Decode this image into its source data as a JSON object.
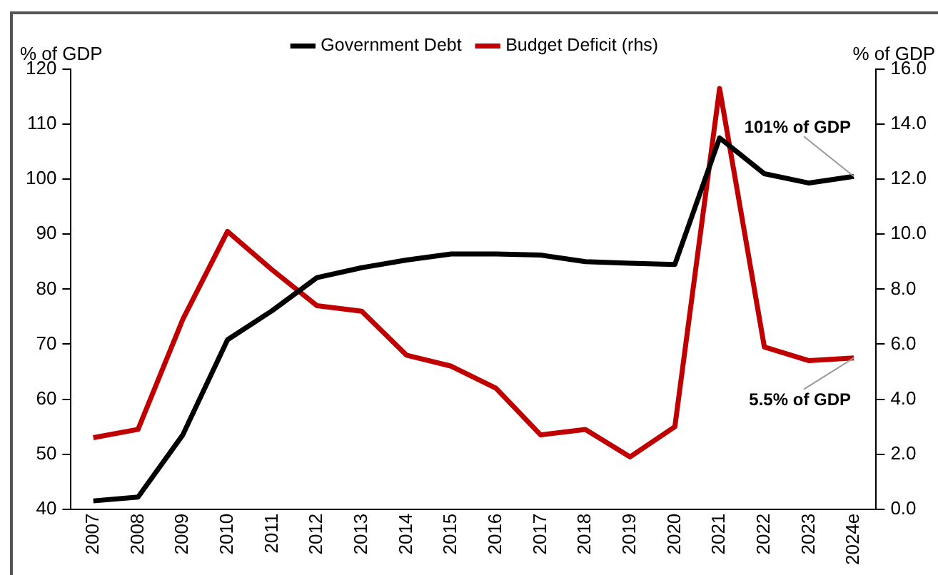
{
  "chart_data": {
    "type": "line",
    "xlabel": null,
    "ylabel": "% of GDP",
    "y2label": "% of GDP",
    "categories": [
      "2007",
      "2008",
      "2009",
      "2010",
      "2011",
      "2012",
      "2013",
      "2014",
      "2015",
      "2016",
      "2017",
      "2018",
      "2019",
      "2020",
      "2021",
      "2022",
      "2023",
      "2024e"
    ],
    "series": [
      {
        "name": "Government Debt",
        "color": "#000000",
        "values": [
          41.5,
          42.2,
          53.5,
          70.8,
          76.1,
          82.1,
          83.9,
          85.3,
          86.4,
          86.4,
          86.2,
          85.0,
          84.7,
          84.5,
          107.5,
          101.0,
          99.3,
          100.5
        ]
      },
      {
        "name": "Budget Deficit (rhs)",
        "color": "#c00000",
        "axis": "y2",
        "values": [
          2.6,
          2.9,
          6.9,
          10.1,
          8.7,
          7.4,
          7.2,
          5.6,
          5.2,
          4.4,
          2.7,
          2.9,
          1.9,
          3.0,
          15.3,
          5.9,
          5.4,
          5.5
        ]
      }
    ],
    "ylim": [
      40,
      120
    ],
    "yticks": [
      40,
      50,
      60,
      70,
      80,
      90,
      100,
      110,
      120
    ],
    "y2lim": [
      0,
      16
    ],
    "y2ticks": [
      {
        "value": 0,
        "label": "0.0"
      },
      {
        "value": 2,
        "label": "2.0"
      },
      {
        "value": 4,
        "label": "4.0"
      },
      {
        "value": 6,
        "label": "6.0"
      },
      {
        "value": 8,
        "label": "8.0"
      },
      {
        "value": 10,
        "label": "10.0"
      },
      {
        "value": 12,
        "label": "12.0"
      },
      {
        "value": 14,
        "label": "14.0"
      },
      {
        "value": 16,
        "label": "16.0"
      }
    ],
    "annotations": [
      {
        "text": "101% of GDP",
        "x": "2024e",
        "y": 100.5
      },
      {
        "text": "5.5% of GDP",
        "x": "2024e",
        "y": 67.5
      }
    ],
    "grid": false,
    "legend": "top",
    "marker": "none",
    "line_style": "solid"
  }
}
